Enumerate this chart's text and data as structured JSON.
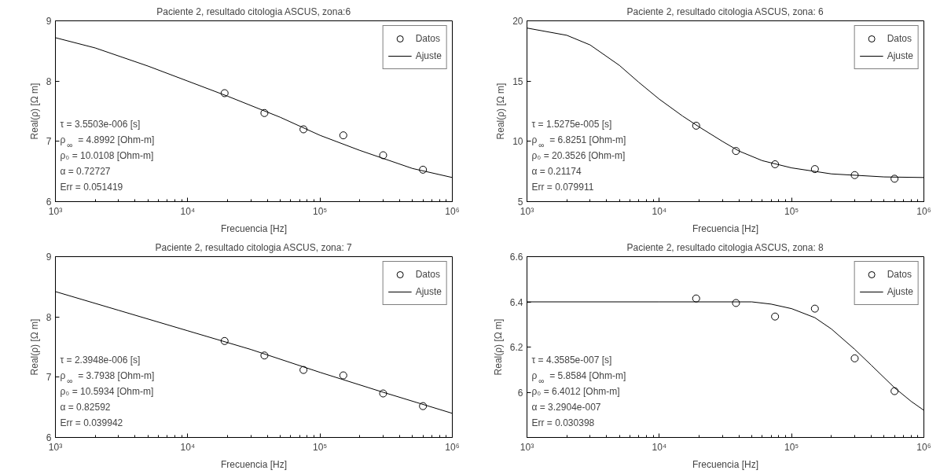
{
  "chart_data": [
    {
      "type": "scatter",
      "title": "Paciente 2, resultado citologia ASCUS, zona:6",
      "xlabel": "Frecuencia [Hz]",
      "ylabel": "Real(ρ) [Ω m]",
      "log": "x",
      "grid": false,
      "legend": "top right",
      "xlim": [
        1000,
        1000000
      ],
      "xticks": [
        {
          "value": 1000,
          "label": "10³"
        },
        {
          "value": 10000,
          "label": "10⁴"
        },
        {
          "value": 100000,
          "label": "10⁵"
        },
        {
          "value": 1000000,
          "label": "10⁶"
        }
      ],
      "ylim": [
        6,
        9
      ],
      "yticks": [
        6,
        7,
        8,
        9
      ],
      "series": [
        {
          "name": "Datos",
          "type": "scatter",
          "marker": "circle",
          "color": "#000000",
          "x": [
            19000,
            38000,
            75000,
            150000,
            300000,
            600000
          ],
          "values": [
            7.8,
            7.47,
            7.2,
            7.1,
            6.77,
            6.53
          ]
        },
        {
          "name": "Ajuste",
          "type": "line",
          "color": "#000000",
          "x": [
            1000,
            2000,
            5000,
            10000,
            20000,
            50000,
            100000,
            200000,
            500000,
            1000000
          ],
          "values": [
            8.72,
            8.55,
            8.25,
            8.0,
            7.75,
            7.4,
            7.1,
            6.85,
            6.55,
            6.4
          ]
        }
      ],
      "annotations": [
        "τ = 3.5503e-006 [s]",
        "ρ$_{∞}$ = 4.8992 [Ohm-m]",
        "ρ₀ = 10.0108 [Ohm-m]",
        "α = 0.72727",
        "Err = 0.051419"
      ]
    },
    {
      "type": "scatter",
      "title": "Paciente 2, resultado citologia ASCUS, zona: 6",
      "xlabel": "Frecuencia [Hz]",
      "ylabel": "Real(ρ) [Ω m]",
      "log": "x",
      "grid": false,
      "legend": "top right",
      "xlim": [
        1000,
        1000000
      ],
      "xticks": [
        {
          "value": 1000,
          "label": "10³"
        },
        {
          "value": 10000,
          "label": "10⁴"
        },
        {
          "value": 100000,
          "label": "10⁵"
        },
        {
          "value": 1000000,
          "label": "10⁶"
        }
      ],
      "ylim": [
        5,
        20
      ],
      "yticks": [
        5,
        10,
        15,
        20
      ],
      "series": [
        {
          "name": "Datos",
          "type": "scatter",
          "marker": "circle",
          "color": "#000000",
          "x": [
            19000,
            38000,
            75000,
            150000,
            300000,
            600000
          ],
          "values": [
            11.3,
            9.2,
            8.1,
            7.7,
            7.2,
            6.9
          ]
        },
        {
          "name": "Ajuste",
          "type": "line",
          "color": "#000000",
          "x": [
            1000,
            2000,
            3000,
            5000,
            7000,
            10000,
            15000,
            20000,
            30000,
            40000,
            60000,
            100000,
            200000,
            500000,
            1000000
          ],
          "values": [
            19.4,
            18.8,
            18.0,
            16.3,
            14.9,
            13.5,
            12.1,
            11.2,
            10.0,
            9.2,
            8.4,
            7.8,
            7.3,
            7.05,
            7.0
          ]
        }
      ],
      "annotations": [
        "τ = 1.5275e-005 [s]",
        "ρ$_{∞}$ = 6.8251 [Ohm-m]",
        "ρ₀ = 20.3526 [Ohm-m]",
        "α = 0.21174",
        "Err = 0.079911"
      ]
    },
    {
      "type": "scatter",
      "title": "Paciente 2, resultado citologia ASCUS, zona: 7",
      "xlabel": "Frecuencia [Hz]",
      "ylabel": "Real(ρ) [Ω m]",
      "log": "x",
      "grid": false,
      "legend": "top right",
      "xlim": [
        1000,
        1000000
      ],
      "xticks": [
        {
          "value": 1000,
          "label": "10³"
        },
        {
          "value": 10000,
          "label": "10⁴"
        },
        {
          "value": 100000,
          "label": "10⁵"
        },
        {
          "value": 1000000,
          "label": "10⁶"
        }
      ],
      "ylim": [
        6,
        9
      ],
      "yticks": [
        6,
        7,
        8,
        9
      ],
      "series": [
        {
          "name": "Datos",
          "type": "scatter",
          "marker": "circle",
          "color": "#000000",
          "x": [
            19000,
            38000,
            75000,
            150000,
            300000,
            600000
          ],
          "values": [
            7.6,
            7.36,
            7.12,
            7.03,
            6.73,
            6.52
          ]
        },
        {
          "name": "Ajuste",
          "type": "line",
          "color": "#000000",
          "x": [
            1000,
            3000,
            10000,
            30000,
            100000,
            300000,
            1000000
          ],
          "values": [
            8.42,
            8.11,
            7.77,
            7.46,
            7.08,
            6.75,
            6.4
          ]
        }
      ],
      "annotations": [
        "τ = 2.3948e-006 [s]",
        "ρ$_{∞}$ = 3.7938 [Ohm-m]",
        "ρ₀ = 10.5934 [Ohm-m]",
        "α = 0.82592",
        "Err = 0.039942"
      ]
    },
    {
      "type": "scatter",
      "title": "Paciente 2, resultado citologia ASCUS, zona: 8",
      "xlabel": "Frecuencia [Hz]",
      "ylabel": "Real(ρ) [Ω m]",
      "log": "x",
      "grid": false,
      "legend": "top right",
      "xlim": [
        1000,
        1000000
      ],
      "xticks": [
        {
          "value": 1000,
          "label": "10³"
        },
        {
          "value": 10000,
          "label": "10⁴"
        },
        {
          "value": 100000,
          "label": "10⁵"
        },
        {
          "value": 1000000,
          "label": "10⁶"
        }
      ],
      "ylim": [
        5.8,
        6.6
      ],
      "yticks": [
        6,
        6.2,
        6.4,
        6.6
      ],
      "series": [
        {
          "name": "Datos",
          "type": "scatter",
          "marker": "circle",
          "color": "#000000",
          "x": [
            19000,
            38000,
            75000,
            150000,
            300000,
            600000
          ],
          "values": [
            6.415,
            6.395,
            6.335,
            6.37,
            6.15,
            6.005
          ]
        },
        {
          "name": "Ajuste",
          "type": "line",
          "color": "#000000",
          "x": [
            1000,
            10000,
            50000,
            70000,
            100000,
            150000,
            200000,
            300000,
            400000,
            600000,
            800000,
            1000000
          ],
          "values": [
            6.4,
            6.4,
            6.4,
            6.39,
            6.37,
            6.33,
            6.28,
            6.19,
            6.12,
            6.02,
            5.96,
            5.92
          ]
        }
      ],
      "annotations": [
        "τ = 4.3585e-007 [s]",
        "ρ$_{∞}$ = 5.8584 [Ohm-m]",
        "ρ₀ = 6.4012 [Ohm-m]",
        "α = 3.2904e-007",
        "Err = 0.030398"
      ]
    }
  ]
}
